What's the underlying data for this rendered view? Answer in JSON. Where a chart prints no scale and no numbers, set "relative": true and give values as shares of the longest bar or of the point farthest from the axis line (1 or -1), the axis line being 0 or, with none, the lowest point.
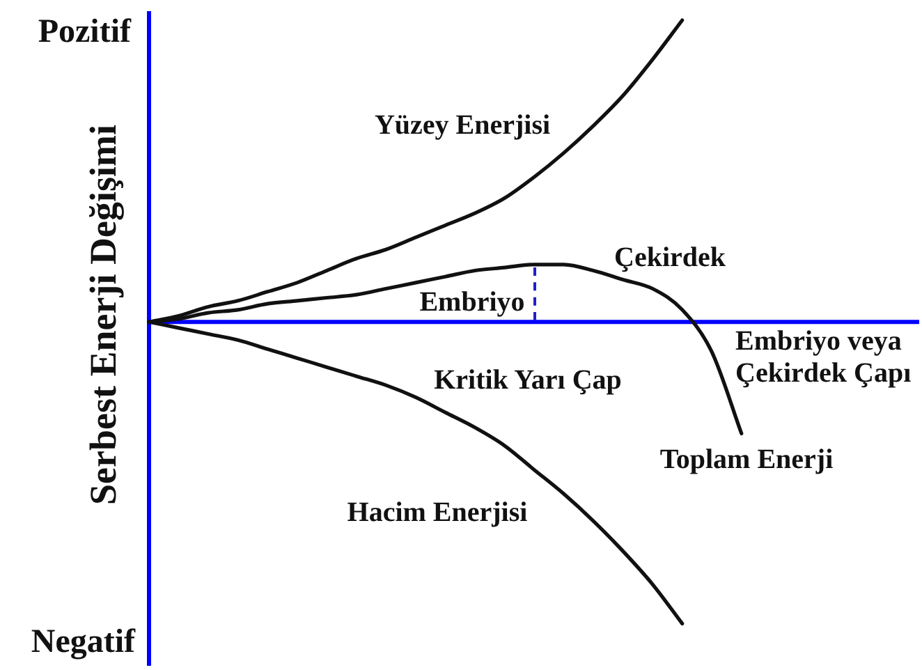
{
  "chart_data": {
    "type": "line",
    "relative": true,
    "ylabel": "Serbest Enerji Değişimi",
    "xlabel": "Embriyo veya Çekirdek Çapı",
    "categories": [
      null,
      null,
      null,
      null,
      null,
      null,
      null,
      null,
      null,
      null,
      null,
      null,
      null,
      null,
      null,
      null,
      null,
      null,
      null,
      null,
      null,
      null,
      null,
      null,
      null,
      null,
      null
    ],
    "series": [
      {
        "name": "Yüzey Enerjisi",
        "color": "#111111",
        "values": [
          0,
          0.02,
          0.05,
          0.07,
          0.1,
          0.13,
          0.17,
          0.21,
          0.24,
          0.28,
          0.32,
          0.36,
          0.41,
          0.48,
          0.56,
          0.65,
          0.75,
          0.87,
          1,
          null,
          null,
          null,
          null,
          null,
          null,
          null,
          null
        ]
      },
      {
        "name": "Hacim Enerjisi",
        "color": "#111111",
        "values": [
          0,
          -0.02,
          -0.04,
          -0.06,
          -0.09,
          -0.12,
          -0.15,
          -0.18,
          -0.21,
          -0.25,
          -0.3,
          -0.35,
          -0.41,
          -0.49,
          -0.57,
          -0.66,
          -0.76,
          -0.87,
          -1,
          null,
          null,
          null,
          null,
          null,
          null,
          null,
          null
        ]
      },
      {
        "name": "Toplam Enerji",
        "color": "#111111",
        "values": [
          0,
          0.01,
          0.03,
          0.04,
          0.06,
          0.07,
          0.08,
          0.09,
          0.11,
          0.13,
          0.15,
          0.17,
          0.18,
          0.19,
          0.19,
          0.17,
          0.14,
          0.11,
          0.04,
          -0.1,
          -0.37,
          null,
          null,
          null,
          null,
          null,
          null
        ]
      }
    ],
    "ref_lines": [
      {
        "axis": "y",
        "value": 0,
        "color": "#0000ff"
      }
    ],
    "annotations": [
      "Pozitif",
      "Negatif",
      "Embriyo",
      "Çekirdek",
      "Kritik Yarı Çap"
    ],
    "legend": false,
    "marker": "none",
    "line_style": "solid"
  }
}
